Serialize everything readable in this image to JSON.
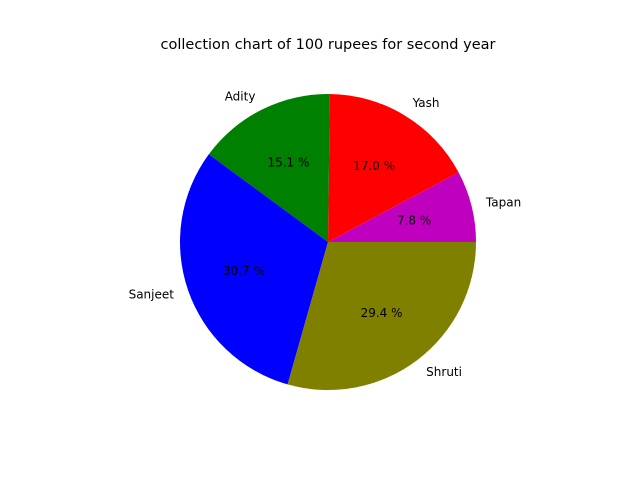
{
  "chart_data": {
    "type": "pie",
    "title": "collection chart of 100 rupees for second year",
    "slices": [
      {
        "label": "Tapan",
        "value": 7.8,
        "pct_label": "7.8 %",
        "color": "#bf00bf"
      },
      {
        "label": "Yash",
        "value": 17.0,
        "pct_label": "17.0 %",
        "color": "#ff0000"
      },
      {
        "label": "Adity",
        "value": 15.1,
        "pct_label": "15.1 %",
        "color": "#008000"
      },
      {
        "label": "Sanjeet",
        "value": 30.7,
        "pct_label": "30.7 %",
        "color": "#0000ff"
      },
      {
        "label": "Shruti",
        "value": 29.4,
        "pct_label": "29.4 %",
        "color": "#808000"
      }
    ],
    "start_angle_deg": 0,
    "direction": "counterclockwise"
  }
}
